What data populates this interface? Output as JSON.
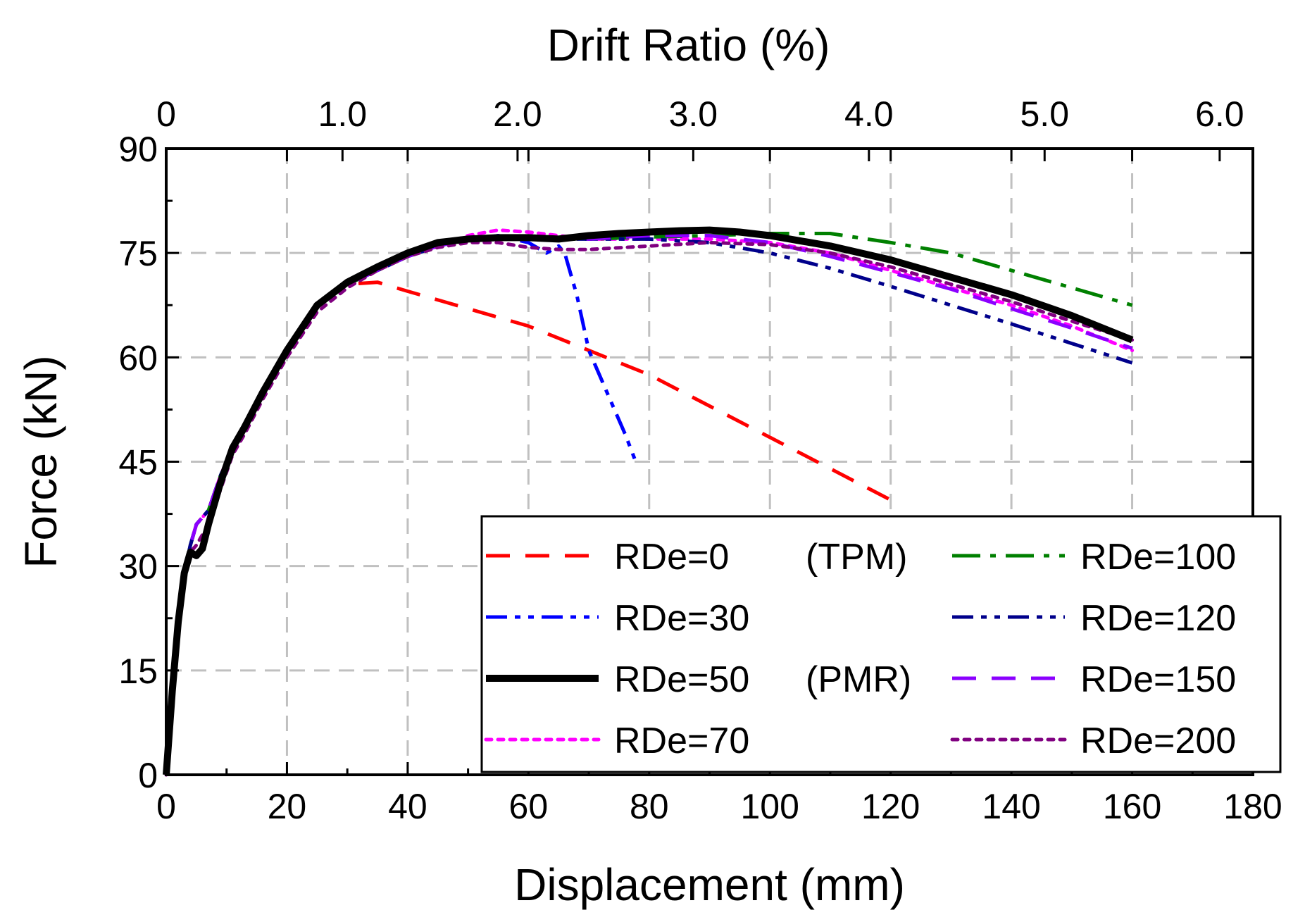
{
  "chart_data": {
    "type": "line",
    "x_bottom": {
      "label": "Displacement (mm)",
      "range": [
        0,
        180
      ],
      "ticks": [
        0,
        20,
        40,
        60,
        80,
        100,
        120,
        140,
        160,
        180
      ]
    },
    "x_top": {
      "label": "Drift Ratio (%)",
      "ticks": [
        {
          "label": "0",
          "displacement": 0
        },
        {
          "label": "1.0",
          "displacement": 29.2
        },
        {
          "label": "2.0",
          "displacement": 58.2
        },
        {
          "label": "3.0",
          "displacement": 87.3
        },
        {
          "label": "4.0",
          "displacement": 116.4
        },
        {
          "label": "5.0",
          "displacement": 145.5
        },
        {
          "label": "6.0",
          "displacement": 174.5
        }
      ]
    },
    "y": {
      "label": "Force (kN)",
      "range": [
        0,
        90
      ],
      "ticks": [
        0,
        15,
        30,
        45,
        60,
        75,
        90
      ]
    },
    "grid": true,
    "legend_position": "bottom-right",
    "series": [
      {
        "name": "RDe=0",
        "note": "(TPM)",
        "color": "#FF0000",
        "dash": "dash",
        "width": 5,
        "x": [
          0,
          1,
          2,
          3,
          4,
          5,
          7,
          9,
          11,
          13,
          16,
          20,
          25,
          30,
          35,
          40,
          60,
          80,
          100,
          120
        ],
        "y": [
          0,
          12,
          22,
          29,
          33,
          36,
          38,
          43,
          47,
          50,
          55,
          61,
          67.5,
          70.5,
          70.8,
          69.5,
          64.5,
          57.5,
          48.5,
          39.5
        ]
      },
      {
        "name": "RDe=30",
        "note": "",
        "color": "#0000FF",
        "dash": "dashdotdot",
        "width": 5,
        "x": [
          0,
          1,
          2,
          3,
          4,
          5,
          7,
          9,
          11,
          13,
          16,
          20,
          25,
          30,
          35,
          40,
          45,
          50,
          55,
          60,
          63,
          65,
          66,
          67,
          68,
          69,
          70,
          72,
          74,
          76,
          78
        ],
        "y": [
          0,
          12,
          22,
          29,
          33,
          36,
          38,
          43,
          47,
          50,
          55,
          61,
          67.5,
          70.5,
          72.5,
          74.5,
          76,
          77,
          77.5,
          76.5,
          75,
          76,
          75,
          72,
          69,
          65,
          61,
          57,
          53,
          49,
          44.5
        ]
      },
      {
        "name": "RDe=50",
        "note": "(PMR)",
        "color": "#000000",
        "dash": "solid",
        "width": 10,
        "x": [
          0,
          1,
          2,
          3,
          4,
          5,
          6,
          7,
          9,
          11,
          13,
          16,
          20,
          25,
          30,
          35,
          40,
          45,
          50,
          55,
          60,
          65,
          70,
          75,
          80,
          85,
          90,
          95,
          100,
          110,
          120,
          130,
          140,
          150,
          160
        ],
        "y": [
          0,
          12,
          22,
          29,
          32,
          31.5,
          32.5,
          36,
          42,
          47,
          50,
          55,
          61,
          67.5,
          70.8,
          73,
          75,
          76.5,
          77,
          77.2,
          77.2,
          77,
          77.5,
          77.8,
          78,
          78.2,
          78.3,
          78,
          77.5,
          76,
          74,
          71.5,
          69,
          66,
          62.5
        ]
      },
      {
        "name": "RDe=70",
        "note": "",
        "color": "#FF00FF",
        "dash": "dot",
        "width": 5,
        "x": [
          0,
          1,
          2,
          3,
          4,
          5,
          7,
          9,
          11,
          13,
          16,
          20,
          25,
          30,
          35,
          40,
          45,
          50,
          55,
          60,
          65,
          70,
          80,
          90,
          100,
          110,
          120,
          130,
          140,
          150,
          160
        ],
        "y": [
          0,
          12,
          22,
          29,
          33,
          36,
          38,
          43,
          47,
          50,
          55,
          61,
          67.5,
          70.5,
          72.5,
          74.5,
          76,
          77.5,
          78.3,
          78,
          77.5,
          77,
          77,
          77,
          76.5,
          75,
          72.5,
          70,
          67.5,
          64.5,
          61
        ]
      },
      {
        "name": "RDe=100",
        "note": "",
        "color": "#008000",
        "dash": "dashdot",
        "width": 5,
        "x": [
          0,
          1,
          2,
          3,
          4,
          5,
          7,
          9,
          11,
          13,
          16,
          20,
          25,
          30,
          35,
          40,
          45,
          50,
          60,
          70,
          80,
          90,
          100,
          110,
          120,
          130,
          140,
          150,
          160
        ],
        "y": [
          0,
          12,
          22,
          29,
          33,
          36,
          38,
          43,
          47,
          50,
          55,
          61,
          67.5,
          70.5,
          72.5,
          74.5,
          76,
          77,
          77,
          77,
          77.3,
          77.5,
          77.8,
          77.8,
          76.5,
          75,
          72.5,
          70,
          67.5
        ]
      },
      {
        "name": "RDe=120",
        "note": "",
        "color": "#00008B",
        "dash": "dashdotdot",
        "width": 5,
        "x": [
          0,
          1,
          2,
          3,
          4,
          5,
          7,
          9,
          11,
          13,
          16,
          20,
          25,
          30,
          35,
          40,
          45,
          50,
          60,
          70,
          80,
          90,
          100,
          110,
          120,
          130,
          140,
          150,
          160
        ],
        "y": [
          0,
          12,
          22,
          29,
          33,
          36,
          38,
          43,
          47,
          50,
          55,
          61,
          67.5,
          70.5,
          72.5,
          74.5,
          76,
          77,
          77,
          77,
          77,
          76.5,
          75,
          72.8,
          70.2,
          67.5,
          64.8,
          62,
          59.2
        ]
      },
      {
        "name": "RDe=150",
        "note": "",
        "color": "#8B00FF",
        "dash": "dash",
        "width": 5,
        "x": [
          0,
          1,
          2,
          3,
          4,
          5,
          7,
          9,
          11,
          13,
          16,
          20,
          25,
          30,
          35,
          40,
          45,
          50,
          60,
          70,
          80,
          90,
          100,
          110,
          120,
          130,
          140,
          150,
          160
        ],
        "y": [
          0,
          12,
          22,
          29,
          33,
          36,
          38,
          43,
          47,
          50,
          55,
          61,
          67.5,
          70.5,
          72.5,
          74.5,
          76,
          77,
          77,
          77,
          77.5,
          77.5,
          76.5,
          74.5,
          72.2,
          69.8,
          67,
          64.2,
          61.3
        ]
      },
      {
        "name": "RDe=200",
        "note": "",
        "color": "#800080",
        "dash": "dot",
        "width": 5,
        "x": [
          0,
          1,
          2,
          3,
          4,
          5,
          7,
          9,
          11,
          13,
          16,
          20,
          25,
          30,
          35,
          40,
          45,
          50,
          55,
          60,
          65,
          70,
          80,
          90,
          100,
          110,
          120,
          130,
          140,
          150,
          160
        ],
        "y": [
          0,
          12,
          22,
          29,
          32,
          33,
          36,
          41,
          46,
          49,
          54,
          60,
          66.5,
          70,
          72.5,
          74.5,
          75.8,
          76.5,
          76.5,
          75.8,
          75.5,
          75.5,
          76,
          76.5,
          76.2,
          75,
          73,
          70.5,
          68,
          65.2,
          62.5
        ]
      }
    ]
  }
}
